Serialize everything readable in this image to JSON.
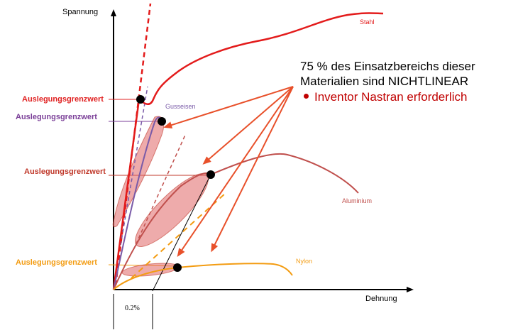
{
  "axes": {
    "y_label": "Spannung",
    "x_label": "Dehnung",
    "offset_label": "0.2%"
  },
  "limits": [
    {
      "label": "Auslegungsgrenzwert",
      "color": "#e02020"
    },
    {
      "label": "Auslegungsgrenzwert",
      "color": "#7b3f98"
    },
    {
      "label": "Auslegungsgrenzwert",
      "color": "#c0392b"
    },
    {
      "label": "Auslegungsgrenzwert",
      "color": "#f39c12"
    }
  ],
  "materials": {
    "steel": {
      "label": "Stahl",
      "color": "#e31b1b"
    },
    "cast_iron": {
      "label": "Gusseisen",
      "color": "#7a5ba8"
    },
    "aluminium": {
      "label": "Aluminium",
      "color": "#c0504d"
    },
    "nylon": {
      "label": "Nylon",
      "color": "#f39c12"
    }
  },
  "note": {
    "line1": "75 % des Einsatzbereichs dieser",
    "line2": "Materialien sind NICHTLINEAR",
    "bullet": "Inventor Nastran erforderlich",
    "bullet_color": "#c00000",
    "arrow_color": "#e8502a"
  }
}
